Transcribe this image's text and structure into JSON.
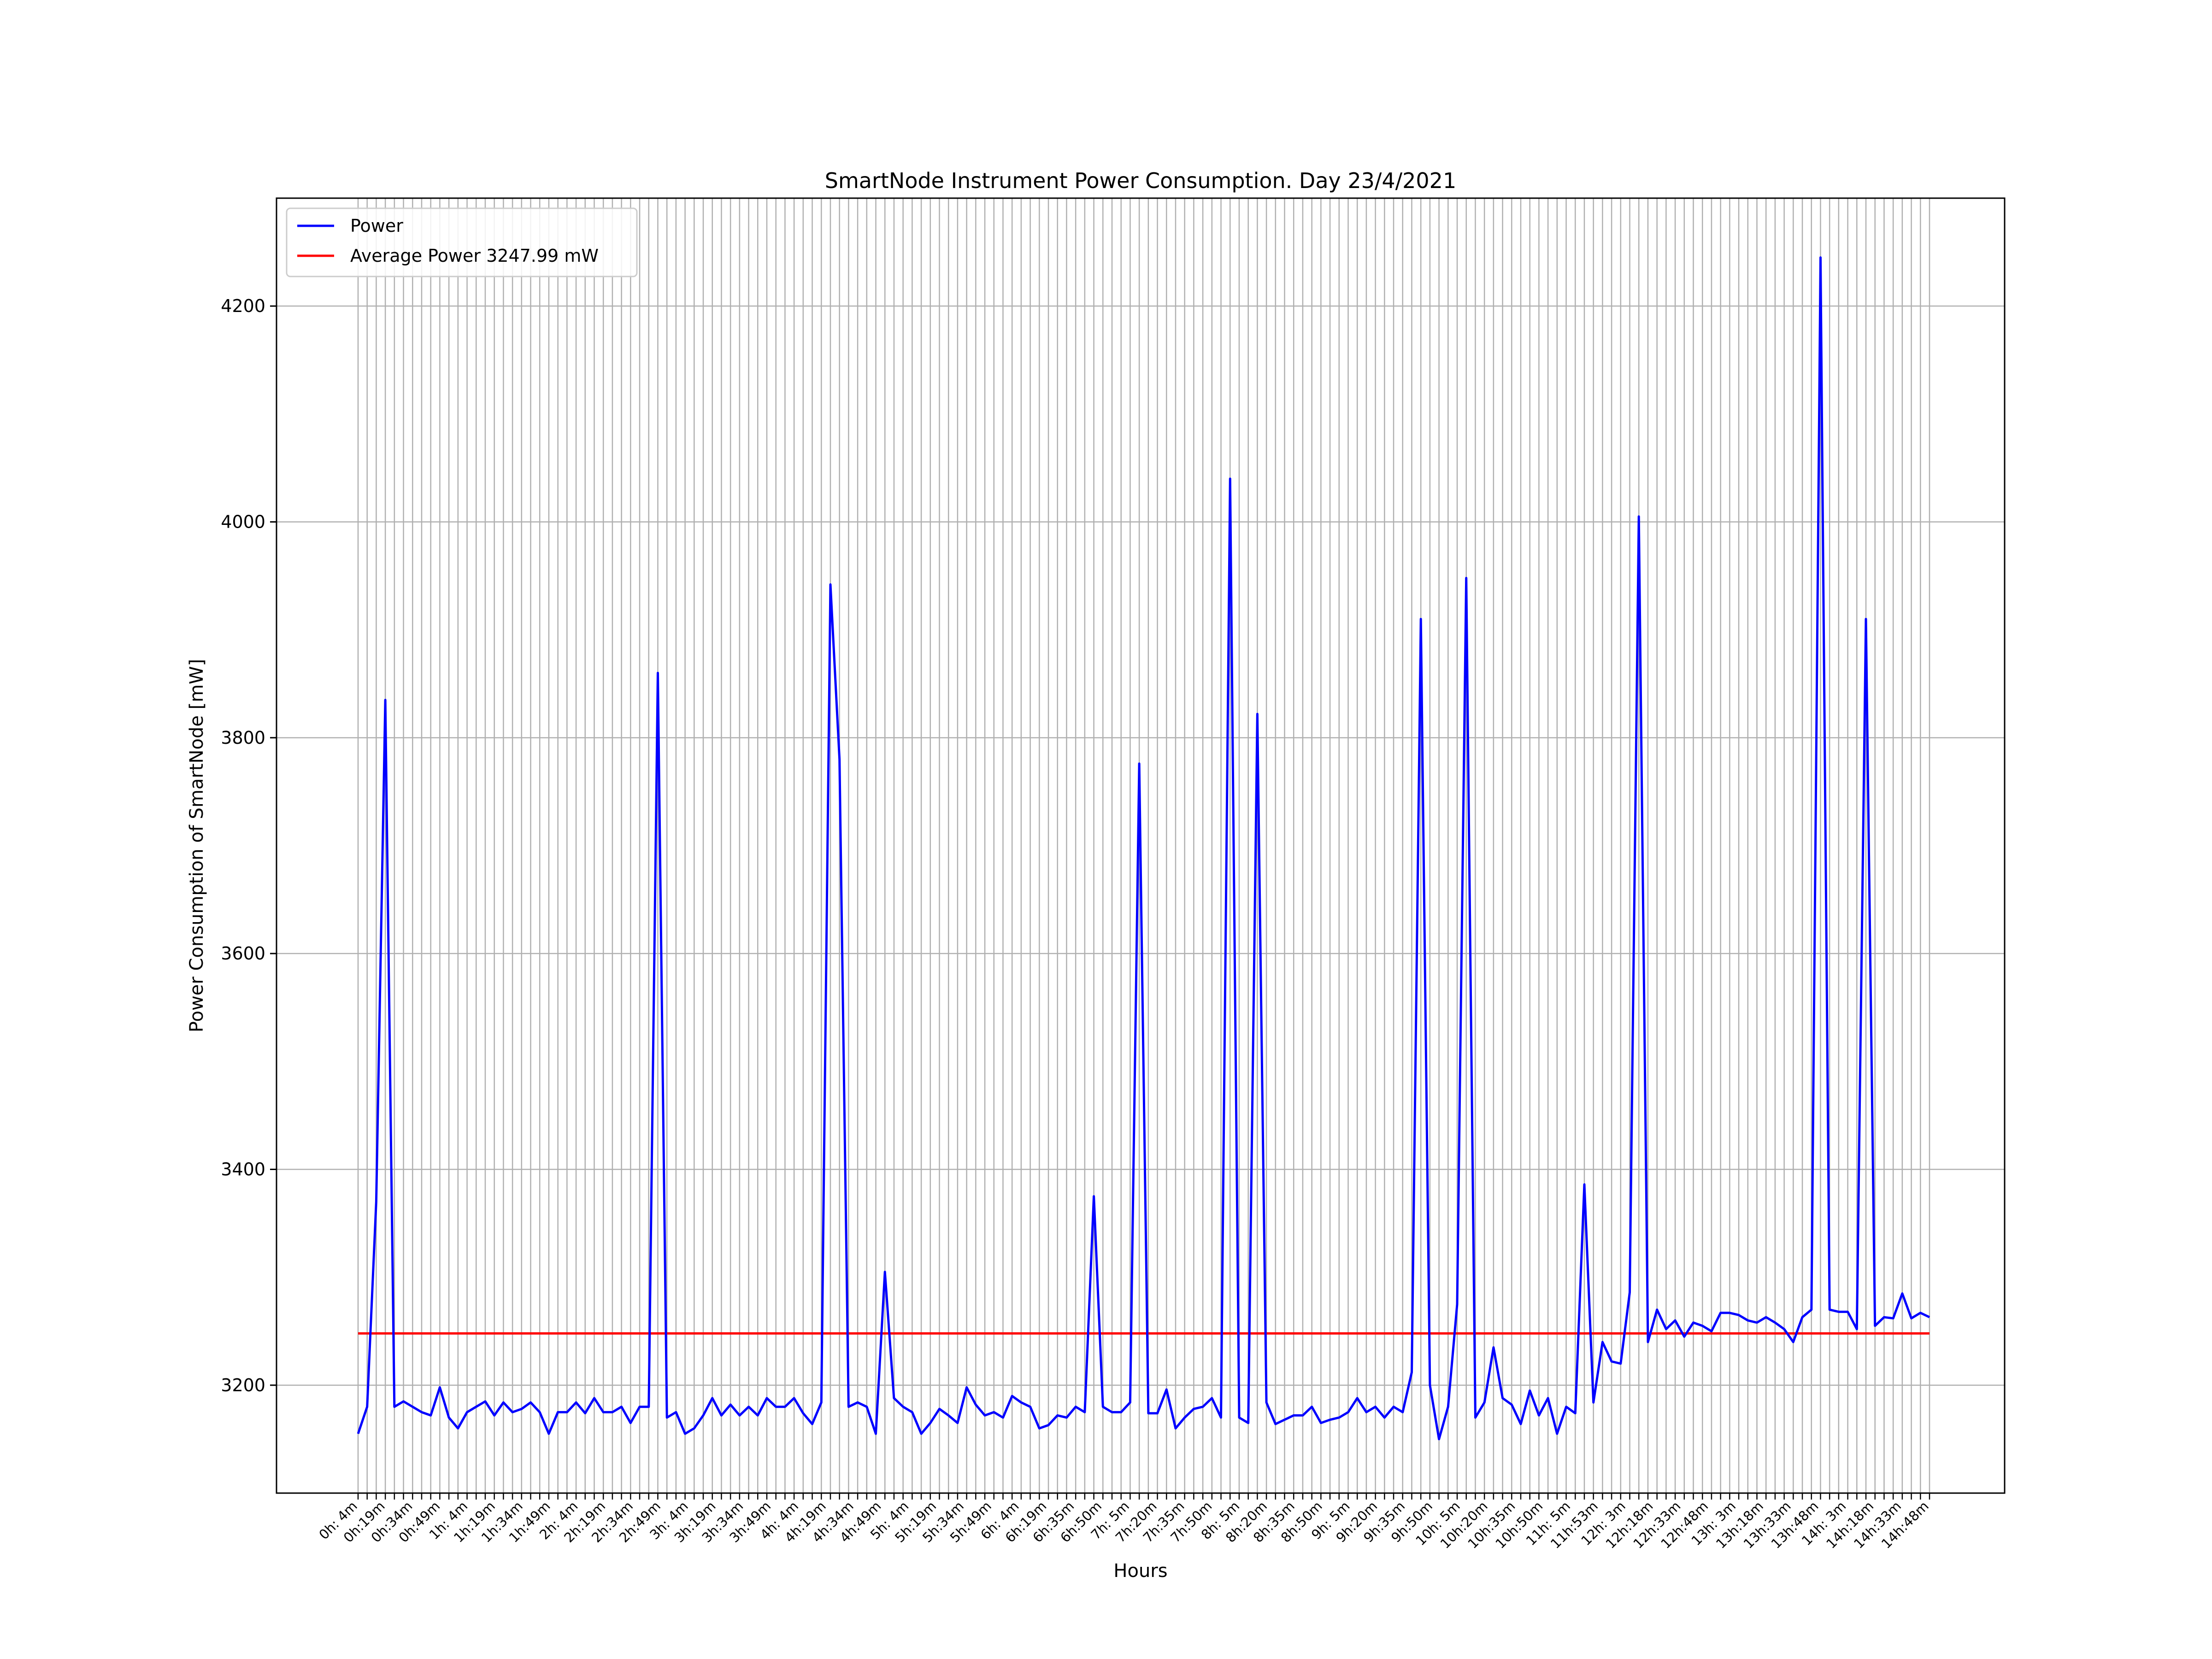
{
  "chart_data": {
    "type": "line",
    "title": "SmartNode Instrument Power Consumption. Day 23/4/2021",
    "xlabel": "Hours",
    "ylabel": "Power Consumption of SmartNode [mW]",
    "ylim": [
      3100,
      4300
    ],
    "yticks": [
      3200,
      3400,
      3600,
      3800,
      4000,
      4200
    ],
    "grid": true,
    "legend_position": "upper-left",
    "xtick_labels": [
      "0h: 4m",
      "0h:19m",
      "0h:34m",
      "0h:49m",
      "1h: 4m",
      "1h:19m",
      "1h:34m",
      "1h:49m",
      "2h: 4m",
      "2h:19m",
      "2h:34m",
      "2h:49m",
      "3h: 4m",
      "3h:19m",
      "3h:34m",
      "3h:49m",
      "4h: 4m",
      "4h:19m",
      "4h:34m",
      "4h:49m",
      "5h: 4m",
      "5h:19m",
      "5h:34m",
      "5h:49m",
      "6h: 4m",
      "6h:19m",
      "6h:35m",
      "6h:50m",
      "7h: 5m",
      "7h:20m",
      "7h:35m",
      "7h:50m",
      "8h: 5m",
      "8h:20m",
      "8h:35m",
      "8h:50m",
      "9h: 5m",
      "9h:20m",
      "9h:35m",
      "9h:50m",
      "10h: 5m",
      "10h:20m",
      "10h:35m",
      "10h:50m",
      "11h: 5m",
      "11h:53m",
      "12h: 3m",
      "12h:18m",
      "12h:33m",
      "12h:48m",
      "13h: 3m",
      "13h:18m",
      "13h:33m",
      "13h:48m",
      "14h: 3m",
      "14h:18m",
      "14h:33m",
      "14h:48m"
    ],
    "series": [
      {
        "name": "Power",
        "color": "#0000ff",
        "values": [
          3155,
          3180,
          3370,
          3835,
          3180,
          3185,
          3180,
          3175,
          3172,
          3198,
          3170,
          3160,
          3175,
          3180,
          3185,
          3172,
          3184,
          3175,
          3178,
          3184,
          3175,
          3155,
          3175,
          3175,
          3184,
          3174,
          3188,
          3175,
          3175,
          3180,
          3165,
          3180,
          3180,
          3860,
          3170,
          3175,
          3155,
          3160,
          3172,
          3188,
          3172,
          3182,
          3172,
          3180,
          3172,
          3188,
          3180,
          3180,
          3188,
          3174,
          3164,
          3184,
          3942,
          3780,
          3180,
          3184,
          3180,
          3155,
          3305,
          3188,
          3180,
          3175,
          3155,
          3165,
          3178,
          3172,
          3165,
          3198,
          3182,
          3172,
          3175,
          3170,
          3190,
          3184,
          3180,
          3160,
          3163,
          3172,
          3170,
          3180,
          3175,
          3375,
          3180,
          3175,
          3175,
          3184,
          3776,
          3174,
          3174,
          3196,
          3160,
          3170,
          3178,
          3180,
          3188,
          3170,
          4040,
          3170,
          3165,
          3822,
          3184,
          3164,
          3168,
          3172,
          3172,
          3180,
          3165,
          3168,
          3170,
          3175,
          3188,
          3175,
          3180,
          3170,
          3180,
          3175,
          3212,
          3910,
          3200,
          3150,
          3180,
          3275,
          3948,
          3170,
          3184,
          3235,
          3188,
          3182,
          3164,
          3195,
          3172,
          3188,
          3155,
          3180,
          3174,
          3386,
          3184,
          3240,
          3222,
          3220,
          3286,
          4005,
          3240,
          3270,
          3252,
          3260,
          3245,
          3258,
          3255,
          3250,
          3267,
          3267,
          3265,
          3260,
          3258,
          3263,
          3258,
          3252,
          3240,
          3263,
          3270,
          4245,
          3270,
          3268,
          3268,
          3252,
          3910,
          3255,
          3263,
          3262,
          3285,
          3262,
          3267,
          3263
        ]
      },
      {
        "name": "Average Power 3247.99 mW",
        "color": "#ff0000",
        "constant": 3247.99
      }
    ]
  }
}
